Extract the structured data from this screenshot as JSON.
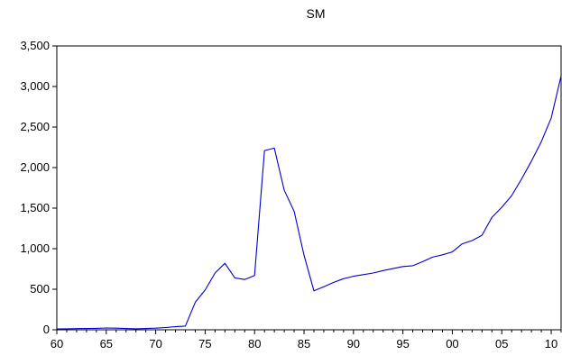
{
  "chart_data": {
    "type": "line",
    "title": "SM",
    "xlabel": "",
    "ylabel": "",
    "xlim": [
      1960,
      2011
    ],
    "ylim": [
      0,
      3500
    ],
    "grid": false,
    "colors": {
      "line": "#0000cc",
      "frame": "#000000"
    },
    "yticks": [
      0,
      500,
      1000,
      1500,
      2000,
      2500,
      3000,
      3500
    ],
    "ytick_labels": [
      "0",
      "500",
      "1,000",
      "1,500",
      "2,000",
      "2,500",
      "3,000",
      "3,500"
    ],
    "xticks": [
      1960,
      1965,
      1970,
      1975,
      1980,
      1985,
      1990,
      1995,
      2000,
      2005,
      2010
    ],
    "xtick_labels": [
      "60",
      "65",
      "70",
      "75",
      "80",
      "85",
      "90",
      "95",
      "00",
      "05",
      "10"
    ],
    "series": [
      {
        "x": [
          1960,
          1961,
          1962,
          1963,
          1964,
          1965,
          1966,
          1967,
          1968,
          1969,
          1970,
          1971,
          1972,
          1973,
          1974,
          1975,
          1976,
          1977,
          1978,
          1979,
          1980,
          1981,
          1982,
          1983,
          1984,
          1985,
          1986,
          1987,
          1988,
          1989,
          1990,
          1991,
          1992,
          1993,
          1994,
          1995,
          1996,
          1997,
          1998,
          1999,
          2000,
          2001,
          2002,
          2003,
          2004,
          2005,
          2006,
          2007,
          2008,
          2009,
          2010,
          2011
        ],
        "values": [
          10,
          12,
          14,
          16,
          18,
          22,
          20,
          16,
          12,
          15,
          20,
          28,
          38,
          45,
          340,
          490,
          700,
          820,
          640,
          620,
          670,
          2210,
          2240,
          1720,
          1460,
          920,
          480,
          530,
          585,
          630,
          660,
          680,
          700,
          730,
          755,
          780,
          790,
          840,
          895,
          925,
          960,
          1060,
          1100,
          1165,
          1385,
          1510,
          1655,
          1860,
          2080,
          2320,
          2610,
          3130
        ]
      }
    ]
  }
}
